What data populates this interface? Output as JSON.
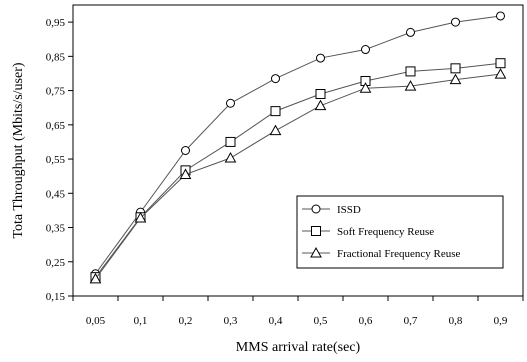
{
  "chart_data": {
    "type": "line",
    "title": "",
    "xlabel": "MMS arrival rate(sec)",
    "ylabel": "Tota Throughput (Mbits/s/user)",
    "categories": [
      "0,05",
      "0,1",
      "0,2",
      "0,3",
      "0,4",
      "0,5",
      "0,6",
      "0,7",
      "0,8",
      "0,9"
    ],
    "ylim": [
      0.15,
      1.0
    ],
    "yticks": [
      0.15,
      0.25,
      0.35,
      0.45,
      0.55,
      0.65,
      0.75,
      0.85,
      0.95
    ],
    "ytick_labels": [
      "0,15",
      "0,25",
      "0,35",
      "0,45",
      "0,55",
      "0,65",
      "0,75",
      "0,85",
      "0,95"
    ],
    "grid": false,
    "legend_position": "bottom-right",
    "series": [
      {
        "name": "ISSD",
        "marker": "circle",
        "values": [
          0.215,
          0.395,
          0.575,
          0.713,
          0.785,
          0.845,
          0.87,
          0.92,
          0.95,
          0.968
        ]
      },
      {
        "name": "Soft Frequency Reuse",
        "marker": "square",
        "values": [
          0.205,
          0.38,
          0.517,
          0.6,
          0.69,
          0.74,
          0.778,
          0.806,
          0.815,
          0.83
        ]
      },
      {
        "name": "Fractional Frequency Reuse",
        "marker": "triangle",
        "values": [
          0.2,
          0.378,
          0.505,
          0.553,
          0.633,
          0.706,
          0.757,
          0.763,
          0.782,
          0.798
        ]
      }
    ]
  }
}
